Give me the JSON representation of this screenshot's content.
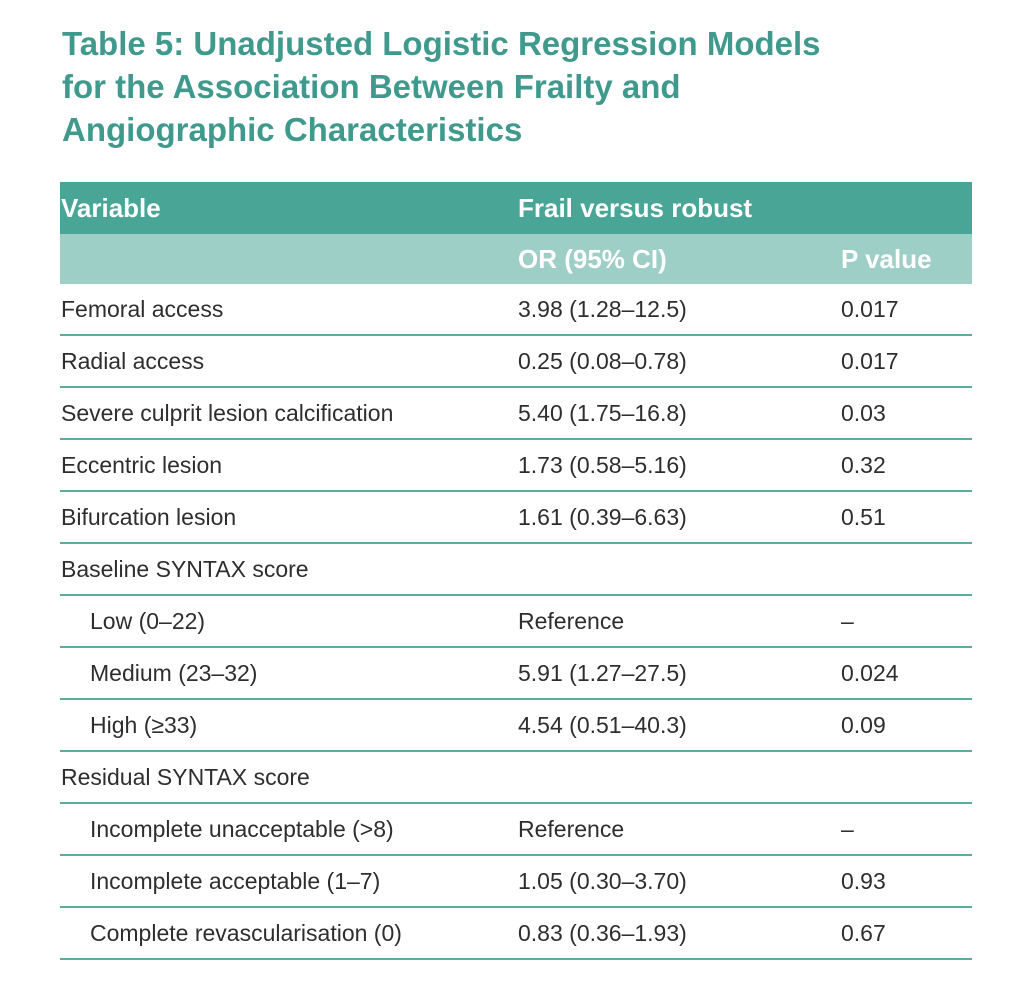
{
  "title": "Table 5: Unadjusted Logistic Regression Models for the Association Between Frailty and Angiographic Characteristics",
  "header": {
    "variable": "Variable",
    "group": "Frail versus robust",
    "or_label": "OR (95% CI)",
    "p_label": "P value"
  },
  "rows": [
    {
      "variable": "Femoral access",
      "or": "3.98 (1.28–12.5)",
      "p": "0.017"
    },
    {
      "variable": "Radial access",
      "or": "0.25 (0.08–0.78)",
      "p": "0.017"
    },
    {
      "variable": "Severe culprit lesion calcification",
      "or": "5.40 (1.75–16.8)",
      "p": "0.03"
    },
    {
      "variable": "Eccentric lesion",
      "or": "1.73 (0.58–5.16)",
      "p": "0.32"
    },
    {
      "variable": "Bifurcation lesion",
      "or": "1.61 (0.39–6.63)",
      "p": "0.51"
    },
    {
      "variable": "Baseline SYNTAX score",
      "or": "",
      "p": ""
    },
    {
      "variable": "Low (0–22)",
      "or": "Reference",
      "p": "–"
    },
    {
      "variable": "Medium (23–32)",
      "or": "5.91 (1.27–27.5)",
      "p": "0.024"
    },
    {
      "variable": "High (≥33)",
      "or": "4.54 (0.51–40.3)",
      "p": "0.09"
    },
    {
      "variable": "Residual SYNTAX score",
      "or": "",
      "p": ""
    },
    {
      "variable": "Incomplete unacceptable (>8)",
      "or": "Reference",
      "p": "–"
    },
    {
      "variable": "Incomplete acceptable (1–7)",
      "or": "1.05 (0.30–3.70)",
      "p": "0.93"
    },
    {
      "variable": "Complete revascularisation (0)",
      "or": "0.83 (0.36–1.93)",
      "p": "0.67"
    }
  ]
}
